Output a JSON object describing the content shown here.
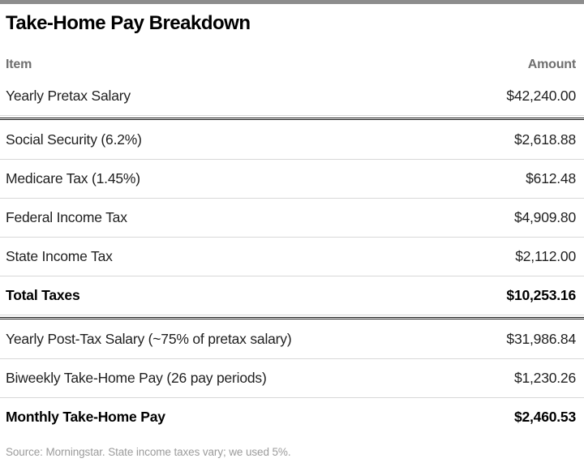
{
  "colors": {
    "top_bar": "#8d8d8d",
    "heavy_rule": "#1a1a1a",
    "light_rule": "#d8d8d8",
    "header_text": "#6f6f6f",
    "row_text": "#1f1f1f",
    "footer_text": "#9b9b9b",
    "background": "#ffffff"
  },
  "header": {
    "title": "Take-Home Pay Breakdown"
  },
  "table": {
    "columns": {
      "item": "Item",
      "amount": "Amount"
    },
    "rows": [
      {
        "item": "Yearly Pretax Salary",
        "amount": "$42,240.00"
      },
      {
        "item": "Social Security (6.2%)",
        "amount": "$2,618.88"
      },
      {
        "item": "Medicare Tax (1.45%)",
        "amount": "$612.48"
      },
      {
        "item": "Federal Income Tax",
        "amount": "$4,909.80"
      },
      {
        "item": "State Income Tax",
        "amount": "$2,112.00"
      },
      {
        "item": "Total Taxes",
        "amount": "$10,253.16"
      },
      {
        "item": "Yearly Post-Tax Salary (~75% of pretax salary)",
        "amount": "$31,986.84"
      },
      {
        "item": "Biweekly Take-Home Pay (26 pay periods)",
        "amount": "$1,230.26"
      },
      {
        "item": "Monthly Take-Home Pay",
        "amount": "$2,460.53"
      }
    ]
  },
  "footer": {
    "source_note": "Source: Morningstar. State income taxes vary; we used 5%."
  },
  "chart_data": {
    "type": "table",
    "title": "Take-Home Pay Breakdown",
    "columns": [
      "Item",
      "Amount"
    ],
    "rows": [
      [
        "Yearly Pretax Salary",
        42240.0
      ],
      [
        "Social Security (6.2%)",
        2618.88
      ],
      [
        "Medicare Tax (1.45%)",
        612.48
      ],
      [
        "Federal Income Tax",
        4909.8
      ],
      [
        "State Income Tax",
        2112.0
      ],
      [
        "Total Taxes",
        10253.16
      ],
      [
        "Yearly Post-Tax Salary (~75% of pretax salary)",
        31986.84
      ],
      [
        "Biweekly Take-Home Pay (26 pay periods)",
        1230.26
      ],
      [
        "Monthly Take-Home Pay",
        2460.53
      ]
    ],
    "bold_rows": [
      "Total Taxes",
      "Monthly Take-Home Pay"
    ],
    "section_breaks_after": [
      "Yearly Pretax Salary",
      "Total Taxes"
    ],
    "source": "Source: Morningstar. State income taxes vary; we used 5%."
  }
}
